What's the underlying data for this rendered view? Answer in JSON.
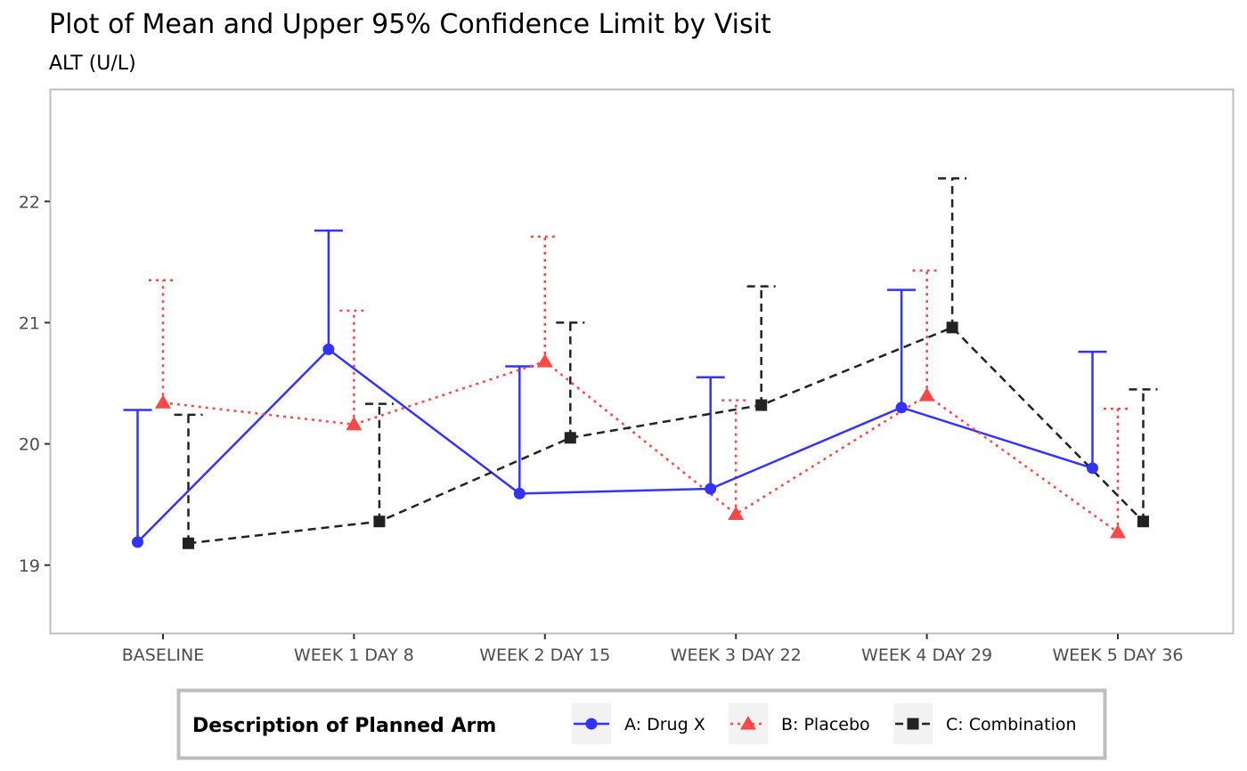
{
  "chart_data": {
    "type": "line",
    "title": "Plot of Mean and Upper 95% Confidence Limit by Visit",
    "subtitle": "ALT (U/L)",
    "xlabel": "",
    "ylabel": "",
    "categories": [
      "BASELINE",
      "WEEK 1 DAY 8",
      "WEEK 2 DAY 15",
      "WEEK 3 DAY 22",
      "WEEK 4 DAY 29",
      "WEEK 5 DAY 36"
    ],
    "y_ticks": [
      19,
      20,
      21,
      22
    ],
    "ylim": [
      18.44,
      22.92
    ],
    "grid": false,
    "legend": {
      "title": "Description of Planned Arm",
      "position": "bottom"
    },
    "series": [
      {
        "name": "A: Drug X",
        "color": "#3333ff",
        "line_style": "solid",
        "marker": "circle",
        "mean": [
          19.19,
          20.78,
          19.59,
          19.63,
          20.3,
          19.8
        ],
        "upper_cl": [
          20.28,
          21.76,
          20.64,
          20.55,
          21.27,
          20.76
        ]
      },
      {
        "name": "B: Placebo",
        "color": "#ff4747",
        "line_style": "dotted",
        "marker": "triangle",
        "mean": [
          20.34,
          20.16,
          20.68,
          19.42,
          20.4,
          19.27
        ],
        "upper_cl": [
          21.35,
          21.1,
          21.71,
          20.36,
          21.43,
          20.29
        ]
      },
      {
        "name": "C: Combination",
        "color": "#222222",
        "line_style": "dashed",
        "marker": "square",
        "mean": [
          19.18,
          19.36,
          20.05,
          20.32,
          20.96,
          19.36
        ],
        "upper_cl": [
          20.24,
          20.33,
          21.0,
          21.3,
          22.19,
          20.45
        ]
      }
    ]
  }
}
